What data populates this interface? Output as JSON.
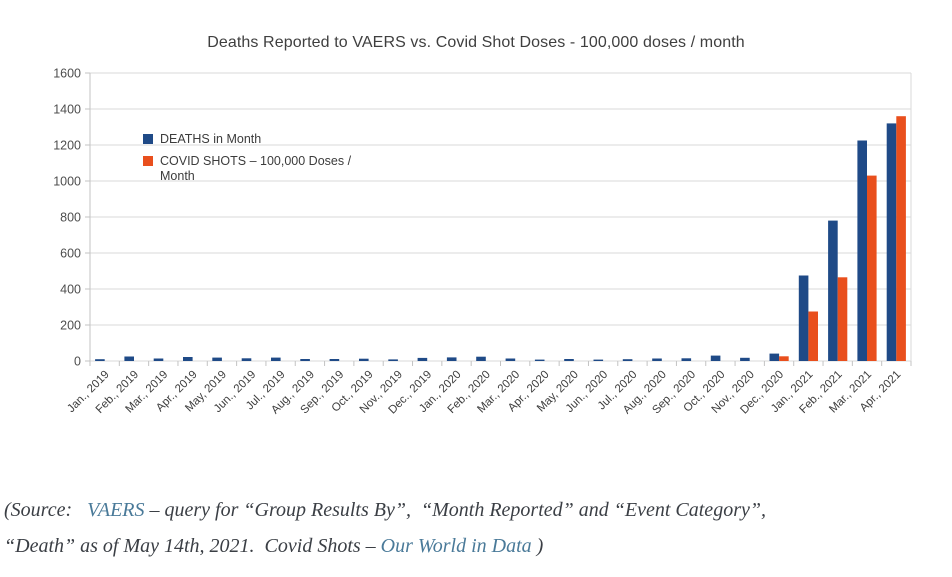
{
  "chart_data": {
    "type": "bar",
    "title": "Deaths Reported to VAERS vs. Covid Shot Doses - 100,000 doses / month",
    "categories": [
      "Jan., 2019",
      "Feb., 2019",
      "Mar., 2019",
      "Apr., 2019",
      "May, 2019",
      "Jun., 2019",
      "Jul., 2019",
      "Aug., 2019",
      "Sep., 2019",
      "Oct., 2019",
      "Nov., 2019",
      "Dec., 2019",
      "Jan., 2020",
      "Feb., 2020",
      "Mar., 2020",
      "Apr., 2020",
      "May, 2020",
      "Jun., 2020",
      "Jul., 2020",
      "Aug., 2020",
      "Sep., 2020",
      "Oct., 2020",
      "Nov., 2020",
      "Dec., 2020",
      "Jan., 2021",
      "Feb., 2021",
      "Mar., 2021",
      "Apr., 2021"
    ],
    "series": [
      {
        "name": "DEATHS in Month",
        "color": "#1f4a87",
        "values": [
          10,
          25,
          14,
          22,
          19,
          15,
          19,
          11,
          11,
          13,
          9,
          17,
          20,
          24,
          14,
          8,
          11,
          8,
          10,
          14,
          15,
          30,
          18,
          41,
          475,
          780,
          1225,
          1320
        ]
      },
      {
        "name": "COVID SHOTS – 100,000 Doses / Month",
        "color": "#e94f1d",
        "values": [
          0,
          0,
          0,
          0,
          0,
          0,
          0,
          0,
          0,
          0,
          0,
          0,
          0,
          0,
          0,
          0,
          0,
          0,
          0,
          0,
          0,
          0,
          0,
          26,
          275,
          465,
          1030,
          1360
        ]
      }
    ],
    "xlabel": "",
    "ylabel": "",
    "ylim": [
      0,
      1600
    ],
    "yticks": [
      0,
      200,
      400,
      600,
      800,
      1000,
      1200,
      1400,
      1600
    ],
    "grid": true,
    "legend_position": "top-left-inside",
    "colors": {
      "gridline": "#dadada",
      "axis": "#c3c3c3",
      "tick_label": "#4d4d4d",
      "title": "#3f3f3f"
    }
  },
  "footer": {
    "text_color": "#3b3f45",
    "link_color": "#4a7a99",
    "lines": [
      {
        "parts": [
          {
            "text": "(Source:   "
          },
          {
            "text": "VAERS",
            "link": true
          },
          {
            "text": " – query for “Group Results By”,  “Month Reported” and “Event Category”,"
          }
        ]
      },
      {
        "parts": [
          {
            "text": "“Death” as of May 14th, 2021.  Covid Shots – "
          },
          {
            "text": "Our World in Data",
            "link": true
          },
          {
            "text": " )"
          }
        ]
      }
    ]
  }
}
